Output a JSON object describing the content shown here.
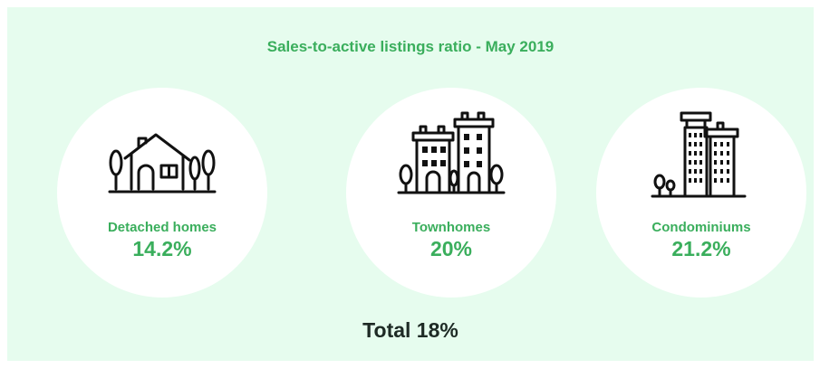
{
  "title": "Sales-to-active listings ratio - May 2019",
  "categories": [
    {
      "label": "Detached homes",
      "value": "14.2%",
      "icon": "detached-house-icon"
    },
    {
      "label": "Townhomes",
      "value": "20%",
      "icon": "townhouse-buildings-icon"
    },
    {
      "label": "Condominiums",
      "value": "21.2%",
      "icon": "condo-towers-icon"
    }
  ],
  "total": "Total 18%",
  "colors": {
    "background": "#e6fcee",
    "accent": "#3aae5c",
    "circle": "#ffffff",
    "total_text": "#1e2a25"
  }
}
